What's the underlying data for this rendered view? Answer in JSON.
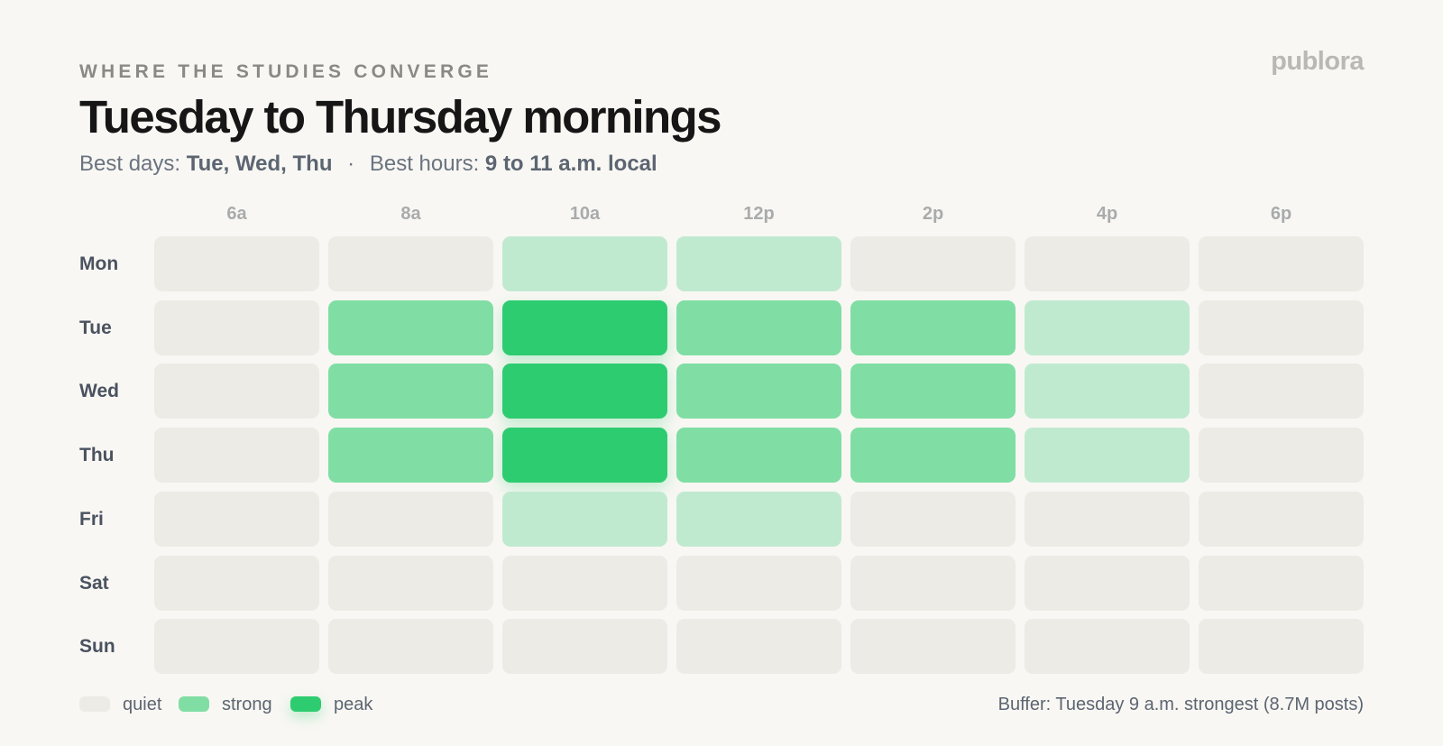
{
  "header": {
    "kicker": "WHERE THE STUDIES CONVERGE",
    "brand": "publora",
    "title": "Tuesday to Thursday mornings",
    "subtitle": {
      "days_label": "Best days:",
      "days_value": "Tue, Wed, Thu",
      "separator": "·",
      "hours_label": "Best hours:",
      "hours_value": "9 to 11 a.m. local"
    }
  },
  "colors": {
    "quiet": "#edebe6",
    "light": "#c0ead0",
    "strong": "#80dea4",
    "peak": "#2ecc70",
    "background": "#f8f7f3"
  },
  "chart_data": {
    "type": "heatmap",
    "title": "Tuesday to Thursday mornings",
    "x": [
      "6a",
      "8a",
      "10a",
      "12p",
      "2p",
      "4p",
      "6p"
    ],
    "y": [
      "Mon",
      "Tue",
      "Wed",
      "Thu",
      "Fri",
      "Sat",
      "Sun"
    ],
    "levels": [
      [
        0,
        0,
        1,
        1,
        0,
        0,
        0
      ],
      [
        0,
        2,
        3,
        2,
        2,
        1,
        0
      ],
      [
        0,
        2,
        3,
        2,
        2,
        1,
        0
      ],
      [
        0,
        2,
        3,
        2,
        2,
        1,
        0
      ],
      [
        0,
        0,
        1,
        1,
        0,
        0,
        0
      ],
      [
        0,
        0,
        0,
        0,
        0,
        0,
        0
      ],
      [
        0,
        0,
        0,
        0,
        0,
        0,
        0
      ]
    ],
    "legend": [
      {
        "label": "quiet",
        "level": 0
      },
      {
        "label": "strong",
        "level": 2
      },
      {
        "label": "peak",
        "level": 3
      }
    ],
    "legend_position": "bottom-left"
  },
  "footer": {
    "source": "Buffer: Tuesday 9 a.m. strongest (8.7M posts)"
  }
}
